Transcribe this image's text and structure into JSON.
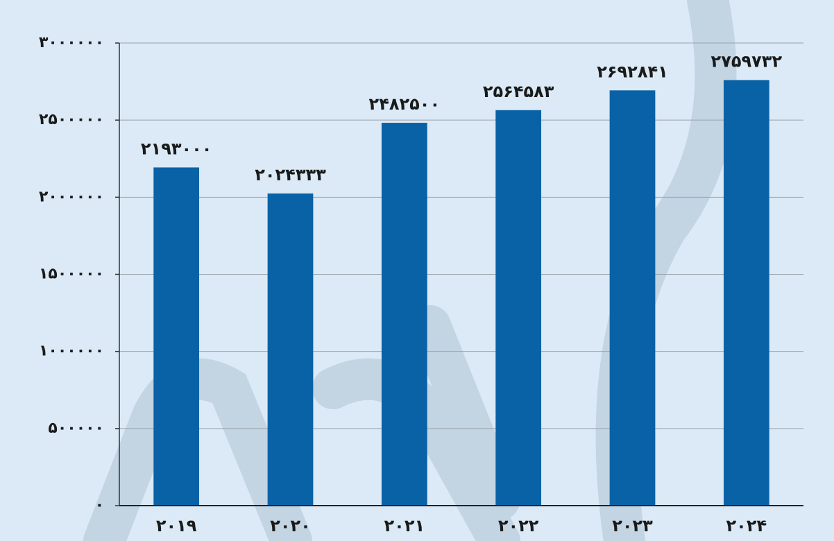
{
  "chart_data": {
    "type": "bar",
    "categories": [
      "۲۰۱۹",
      "۲۰۲۰",
      "۲۰۲۱",
      "۲۰۲۲",
      "۲۰۲۳",
      "۲۰۲۴"
    ],
    "values": [
      2193000,
      2024333,
      2482500,
      2564583,
      2692841,
      2759732
    ],
    "value_labels": [
      "۲۱۹۳۰۰۰",
      "۲۰۲۴۳۳۳",
      "۲۴۸۲۵۰۰",
      "۲۵۶۴۵۸۳",
      "۲۶۹۲۸۴۱",
      "۲۷۵۹۷۳۲"
    ],
    "color": "#0a62a6",
    "ylim": [
      0,
      3000000
    ],
    "yticks": [
      {
        "value": 0,
        "label": "۰"
      },
      {
        "value": 500000,
        "label": "۵۰۰۰۰۰"
      },
      {
        "value": 1000000,
        "label": "۱۰۰۰۰۰۰"
      },
      {
        "value": 1500000,
        "label": "۱۵۰۰۰۰۰"
      },
      {
        "value": 2000000,
        "label": "۲۰۰۰۰۰۰"
      },
      {
        "value": 2500000,
        "label": "۲۵۰۰۰۰۰"
      },
      {
        "value": 3000000,
        "label": "۳۰۰۰۰۰۰"
      }
    ],
    "grid": true
  }
}
